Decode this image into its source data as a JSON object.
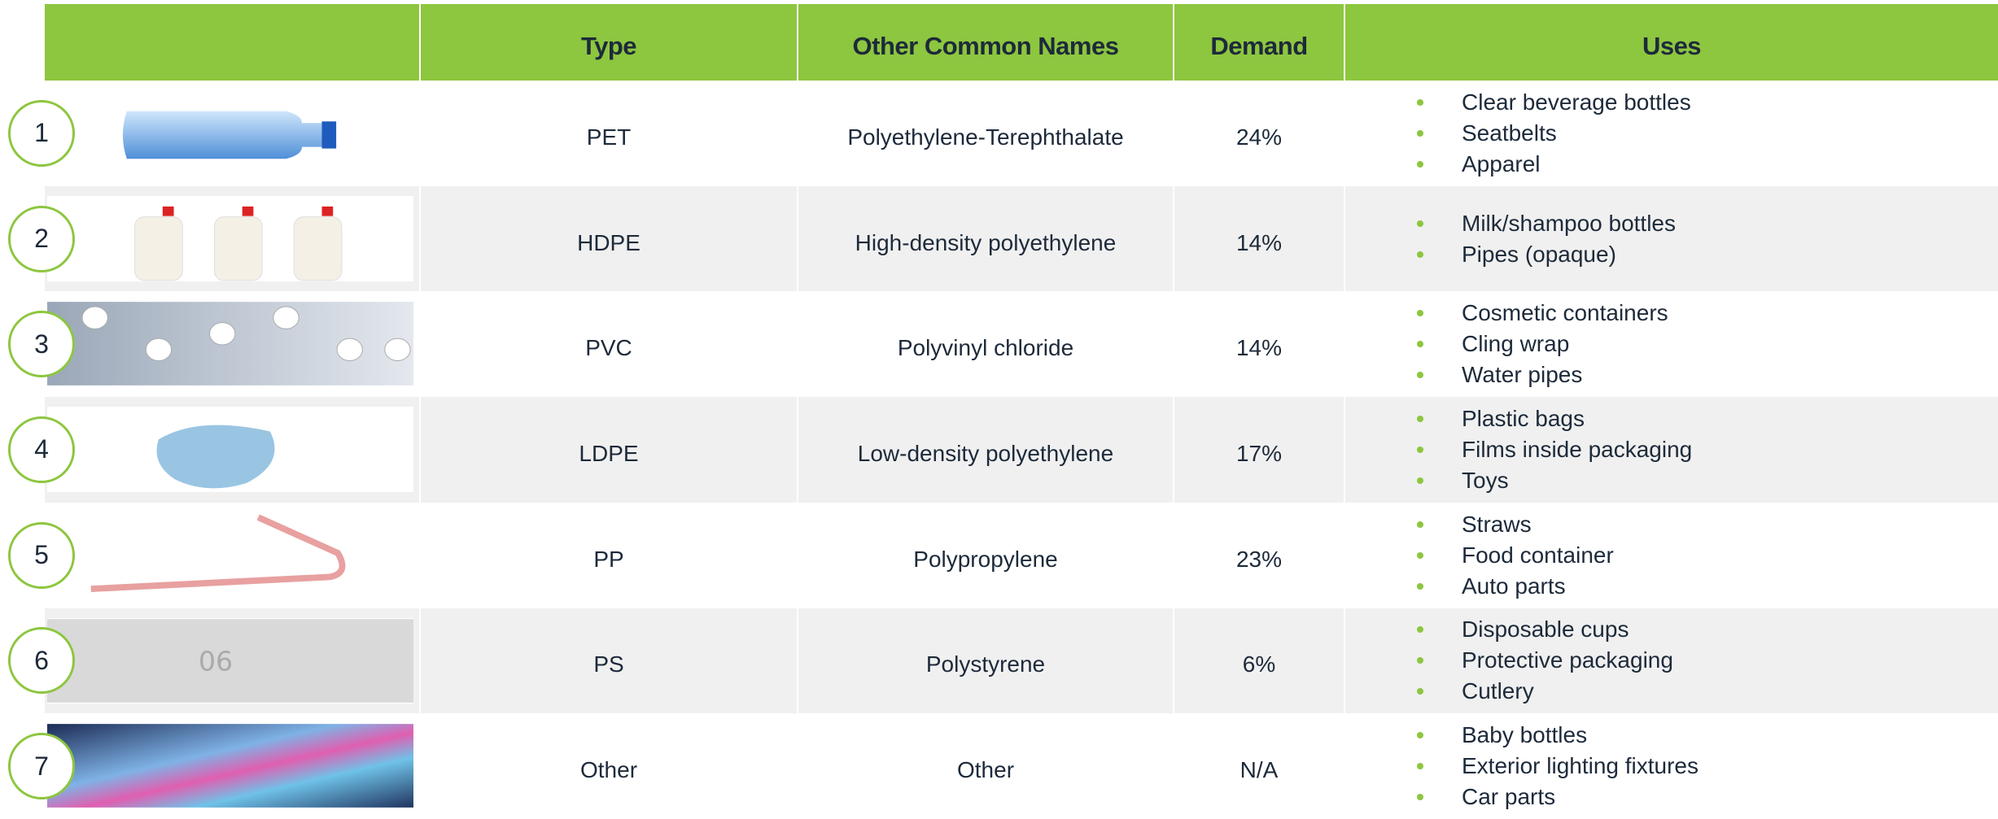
{
  "header": {
    "columns": [
      "Type",
      "Other Common Names",
      "Demand",
      "Uses"
    ]
  },
  "rows": [
    {
      "number": "1",
      "type": "PET",
      "names": "Polyethylene-Terephthalate",
      "demand": "24%",
      "uses": [
        "Clear beverage bottles",
        "Seatbelts",
        "Apparel"
      ]
    },
    {
      "number": "2",
      "type": "HDPE",
      "names": "High-density polyethylene",
      "demand": "14%",
      "uses": [
        "Milk/shampoo bottles",
        "Pipes (opaque)"
      ]
    },
    {
      "number": "3",
      "type": "PVC",
      "names": "Polyvinyl chloride",
      "demand": "14%",
      "uses": [
        "Cosmetic containers",
        "Cling wrap",
        "Water pipes"
      ]
    },
    {
      "number": "4",
      "type": "LDPE",
      "names": "Low-density polyethylene",
      "demand": "17%",
      "uses": [
        "Plastic bags",
        "Films inside packaging",
        "Toys"
      ]
    },
    {
      "number": "5",
      "type": "PP",
      "names": "Polypropylene",
      "demand": "23%",
      "uses": [
        "Straws",
        "Food container",
        "Auto parts"
      ]
    },
    {
      "number": "6",
      "type": "PS",
      "names": "Polystyrene",
      "demand": "6%",
      "uses": [
        "Disposable cups",
        "Protective packaging",
        "Cutlery"
      ]
    },
    {
      "number": "7",
      "type": "Other",
      "names": "Other",
      "demand": "N/A",
      "uses": [
        "Baby bottles",
        "Exterior lighting fixtures",
        "Car parts"
      ]
    }
  ]
}
